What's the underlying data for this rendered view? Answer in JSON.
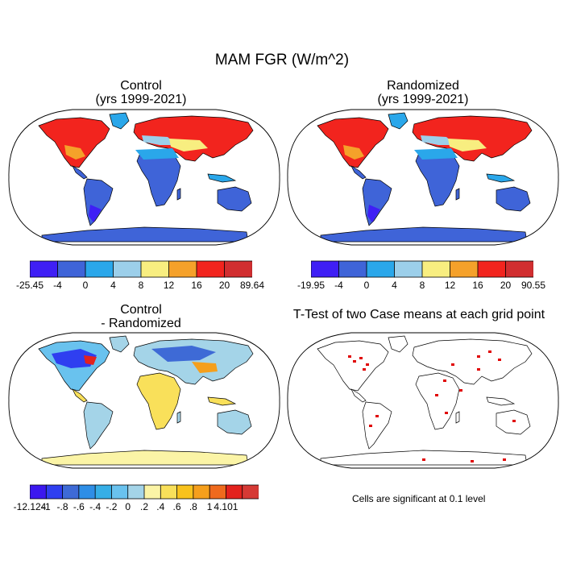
{
  "main_title": "MAM FGR (W/m^2)",
  "panels": {
    "control": {
      "title_line1": "Control",
      "title_line2": "(yrs 1999-2021)"
    },
    "randomized": {
      "title_line1": "Randomized",
      "title_line2": "(yrs 1999-2021)"
    },
    "difference": {
      "title_line1": "Control",
      "title_line2": "- Randomized"
    },
    "ttest": {
      "title": "T-Test of two Case means at each grid point"
    }
  },
  "colorbars": {
    "control": {
      "colors": [
        "#3f1ff5",
        "#3f64d8",
        "#2aa7ea",
        "#9ccfea",
        "#f8ee80",
        "#f5a12a",
        "#f2241e",
        "#d12e30"
      ],
      "labels": [
        "-25.45",
        "-4",
        "0",
        "4",
        "8",
        "12",
        "16",
        "20",
        "89.64"
      ]
    },
    "randomized": {
      "colors": [
        "#3f1ff5",
        "#3f64d8",
        "#2aa7ea",
        "#9ccfea",
        "#f8ee80",
        "#f5a12a",
        "#f2241e",
        "#d12e30"
      ],
      "labels": [
        "-19.95",
        "-4",
        "0",
        "4",
        "8",
        "12",
        "16",
        "20",
        "90.55"
      ]
    },
    "difference": {
      "colors": [
        "#3b18ef",
        "#2f3ff0",
        "#3e6ad6",
        "#2e8ee6",
        "#36aee6",
        "#69c2ee",
        "#a4d4e8",
        "#fbf4a6",
        "#f9e05a",
        "#f8c21c",
        "#f59f1c",
        "#ef6a1d",
        "#e3221d",
        "#d63a35"
      ],
      "labels": [
        "-12.124",
        "-1",
        "-.8",
        "-.6",
        "-.4",
        "-.2",
        "0",
        ".2",
        ".4",
        ".6",
        ".8",
        "1",
        "4.101"
      ]
    }
  },
  "note": "Cells are significant at 0.1 level"
}
